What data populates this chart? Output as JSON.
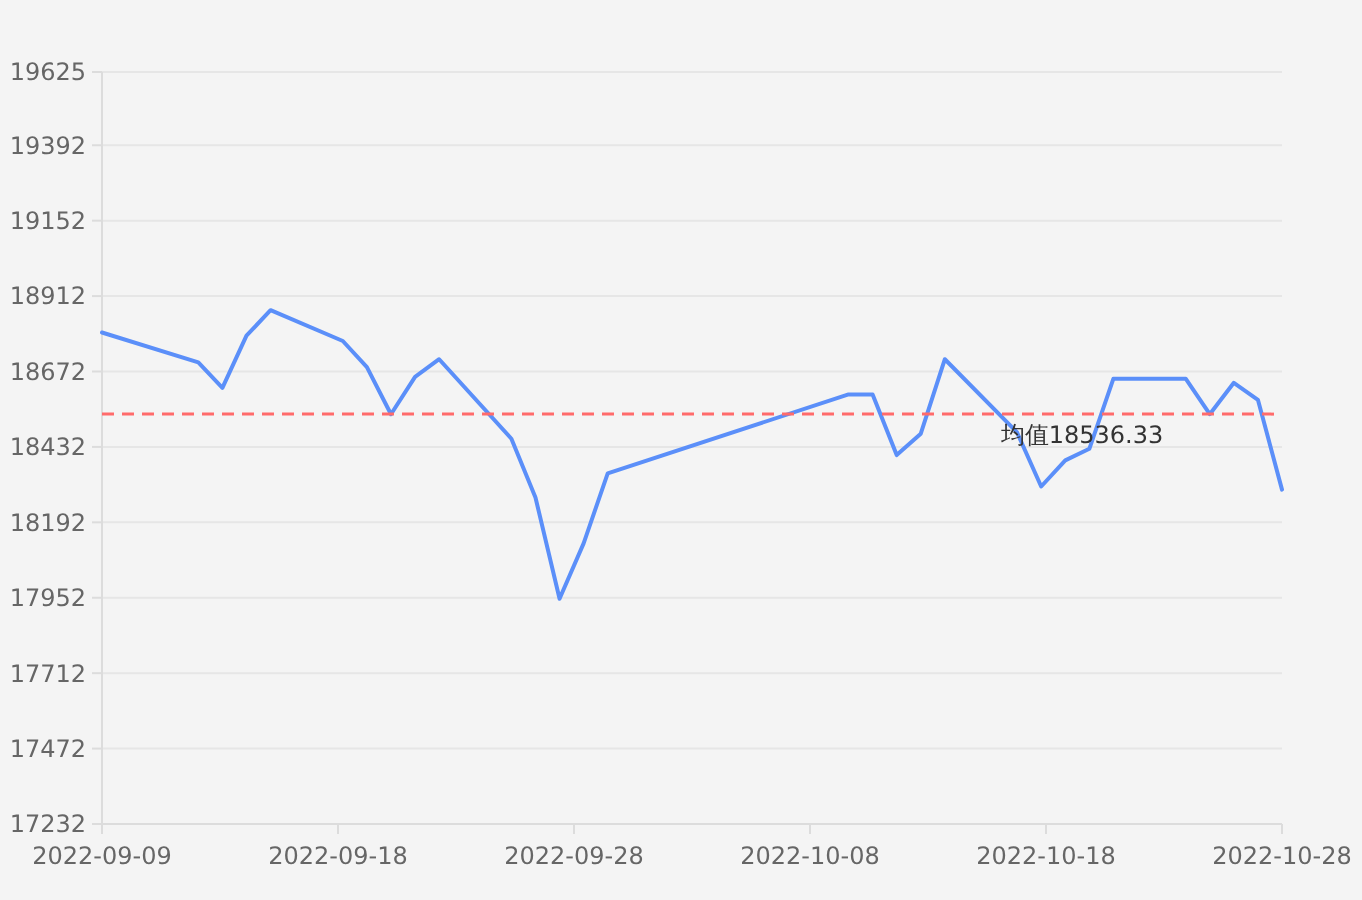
{
  "chart_data": {
    "type": "line",
    "x": [
      "2022-09-09",
      "2022-09-13",
      "2022-09-14",
      "2022-09-15",
      "2022-09-16",
      "2022-09-19",
      "2022-09-20",
      "2022-09-21",
      "2022-09-22",
      "2022-09-23",
      "2022-09-26",
      "2022-09-27",
      "2022-09-28",
      "2022-09-29",
      "2022-09-30",
      "2022-10-10",
      "2022-10-11",
      "2022-10-12",
      "2022-10-13",
      "2022-10-14",
      "2022-10-17",
      "2022-10-18",
      "2022-10-19",
      "2022-10-20",
      "2022-10-21",
      "2022-10-24",
      "2022-10-25",
      "2022-10-26",
      "2022-10-27",
      "2022-10-28"
    ],
    "series": [
      {
        "color": "#5b8ff9",
        "values": [
          18796,
          18701,
          18620,
          18786,
          18867,
          18769,
          18686,
          18536,
          18655,
          18711,
          18458,
          18271,
          17949,
          18125,
          18348,
          18599,
          18599,
          18406,
          18474,
          18711,
          18478,
          18306,
          18389,
          18426,
          18649,
          18649,
          18536,
          18636,
          18582,
          18296
        ]
      }
    ],
    "xlim": [
      "2022-09-09",
      "2022-10-28"
    ],
    "xticks": [
      {
        "value": "2022-09-09",
        "label": "2022-09-09"
      },
      {
        "value": "2022-09-18T19:12",
        "label": "2022-09-18"
      },
      {
        "value": "2022-09-28T14:24",
        "label": "2022-09-28"
      },
      {
        "value": "2022-10-08T09:36",
        "label": "2022-10-08"
      },
      {
        "value": "2022-10-18T04:48",
        "label": "2022-10-18"
      },
      {
        "value": "2022-10-28",
        "label": "2022-10-28"
      }
    ],
    "ylim": [
      17232,
      19625
    ],
    "yticks": [
      17232,
      17472,
      17712,
      17952,
      18192,
      18432,
      18672,
      18912,
      19152,
      19392,
      19625
    ],
    "grid": "y",
    "marker": "none",
    "line_style": "solid",
    "ref_lines": [
      {
        "axis": "y",
        "value": 18536.33,
        "label": "均值18536.33",
        "color": "#ff6b6b",
        "line_style": "dashed"
      }
    ]
  }
}
